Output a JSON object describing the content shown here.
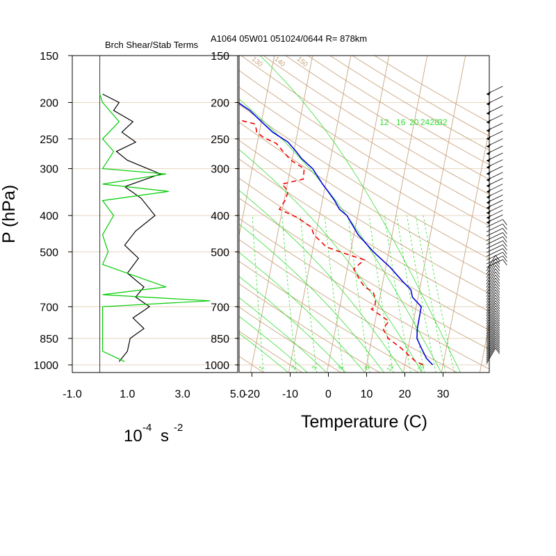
{
  "header": {
    "run_info": "A1064 05W01 051024/0644 R= 878km"
  },
  "colors": {
    "dry_adiabat": "#c8a47e",
    "isobar_line": "#e8d5c0",
    "mixing_ratio": "#33dd33",
    "temperature": "#0000dd",
    "dewpoint": "#ee0000",
    "stability_curve": "#00cc00",
    "shear_curve": "#000000"
  },
  "chart_data": [
    {
      "type": "line",
      "title": "Brch Shear/Stab Terms",
      "ylabel": "P (hPa)",
      "xlabel_base": "10",
      "xlabel_base_exp": "-4",
      "xlabel_unit": "s",
      "xlabel_unit_exp": "-2",
      "y_scale": "log",
      "xlim": [
        -1.0,
        5.0
      ],
      "ylim": [
        1000,
        150
      ],
      "xticks": [
        "-1.0",
        "1.0",
        "3.0",
        "5.0"
      ],
      "yticks": [
        "150",
        "200",
        "250",
        "300",
        "400",
        "500",
        "700",
        "850",
        "1000"
      ],
      "series": [
        {
          "key": "shear",
          "points": [
            [
              0.1,
              190
            ],
            [
              0.7,
              200
            ],
            [
              0.5,
              210
            ],
            [
              1.2,
              225
            ],
            [
              0.8,
              240
            ],
            [
              1.3,
              255
            ],
            [
              0.6,
              270
            ],
            [
              1.0,
              285
            ],
            [
              2.2,
              310
            ],
            [
              0.9,
              335
            ],
            [
              1.5,
              360
            ],
            [
              2.0,
              400
            ],
            [
              1.3,
              440
            ],
            [
              0.9,
              480
            ],
            [
              1.4,
              520
            ],
            [
              1.0,
              570
            ],
            [
              1.6,
              620
            ],
            [
              1.3,
              660
            ],
            [
              1.8,
              700
            ],
            [
              1.2,
              750
            ],
            [
              1.6,
              800
            ],
            [
              1.1,
              850
            ],
            [
              1.0,
              920
            ],
            [
              0.7,
              980
            ]
          ]
        },
        {
          "key": "stability",
          "points": [
            [
              0.0,
              190
            ],
            [
              0.1,
              200
            ],
            [
              0.7,
              225
            ],
            [
              0.1,
              250
            ],
            [
              0.5,
              270
            ],
            [
              0.1,
              300
            ],
            [
              2.4,
              310
            ],
            [
              0.1,
              330
            ],
            [
              2.5,
              345
            ],
            [
              0.1,
              365
            ],
            [
              0.5,
              400
            ],
            [
              0.1,
              450
            ],
            [
              0.3,
              500
            ],
            [
              0.1,
              540
            ],
            [
              2.4,
              620
            ],
            [
              0.1,
              650
            ],
            [
              4.0,
              675
            ],
            [
              0.1,
              700
            ],
            [
              0.1,
              850
            ],
            [
              0.1,
              920
            ],
            [
              0.9,
              980
            ]
          ]
        }
      ]
    },
    {
      "type": "line",
      "title": "",
      "xlabel": "Temperature (C)",
      "ylabel": "",
      "skew_t": true,
      "xlim": [
        -23,
        41
      ],
      "ylim": [
        1000,
        150
      ],
      "xticks": [
        "-20",
        "-10",
        "0",
        "10",
        "20",
        "30"
      ],
      "yticks": [
        "150",
        "200",
        "250",
        "300",
        "400",
        "500",
        "700",
        "850",
        "1000"
      ],
      "grid": true,
      "mixing_ratio_labels_top": [
        "12",
        "16",
        "20",
        "24",
        "28",
        "32"
      ],
      "mixing_ratio_labels_bottom": [
        "1",
        "2",
        "3",
        "5",
        "8",
        "12",
        "20"
      ],
      "dry_adiabat_labels": [
        "50",
        "60",
        "70",
        "80",
        "90",
        "100",
        "110",
        "120",
        "130",
        "140",
        "150"
      ],
      "series": [
        {
          "key": "temperature",
          "points": [
            [
              27.3,
              1000
            ],
            [
              25.3,
              960
            ],
            [
              23.4,
              900
            ],
            [
              21.8,
              850
            ],
            [
              21.4,
              800
            ],
            [
              21.3,
              700
            ],
            [
              18.5,
              660
            ],
            [
              17.7,
              630
            ],
            [
              15.2,
              600
            ],
            [
              11.2,
              550
            ],
            [
              6.0,
              500
            ],
            [
              1.1,
              450
            ],
            [
              -2.8,
              400
            ],
            [
              -5.1,
              385
            ],
            [
              -6.8,
              365
            ],
            [
              -9.0,
              345
            ],
            [
              -10.8,
              330
            ],
            [
              -11.9,
              320
            ],
            [
              -14.2,
              300
            ],
            [
              -17.6,
              282
            ],
            [
              -19.4,
              270
            ],
            [
              -22.0,
              255
            ],
            [
              -26.5,
              240
            ],
            [
              -30.0,
              225
            ],
            [
              -33.6,
              210
            ],
            [
              -37.1,
              200
            ],
            [
              -40.5,
              188
            ]
          ]
        },
        {
          "key": "dewpoint",
          "points": [
            [
              24.8,
              1000
            ],
            [
              22.7,
              980
            ],
            [
              18.0,
              900
            ],
            [
              14.3,
              850
            ],
            [
              12.4,
              800
            ],
            [
              13.6,
              765
            ],
            [
              8.4,
              710
            ],
            [
              9.2,
              700
            ],
            [
              9.0,
              670
            ],
            [
              8.0,
              640
            ],
            [
              5.5,
              620
            ],
            [
              4.2,
              600
            ],
            [
              1.7,
              555
            ],
            [
              4.0,
              525
            ],
            [
              -1.4,
              505
            ],
            [
              -6.6,
              485
            ],
            [
              -10.5,
              450
            ],
            [
              -11.5,
              430
            ],
            [
              -15.7,
              405
            ],
            [
              -20.8,
              385
            ],
            [
              -19.8,
              365
            ],
            [
              -19.4,
              345
            ],
            [
              -21.4,
              330
            ],
            [
              -16.1,
              320
            ],
            [
              -16.4,
              300
            ],
            [
              -20.3,
              285
            ],
            [
              -22.8,
              270
            ],
            [
              -25.0,
              257
            ],
            [
              -28.6,
              248
            ],
            [
              -30.7,
              240
            ],
            [
              -31.0,
              235
            ],
            [
              -31.7,
              228
            ],
            [
              -36.4,
              222
            ],
            [
              -39.4,
              212
            ]
          ]
        }
      ]
    }
  ]
}
